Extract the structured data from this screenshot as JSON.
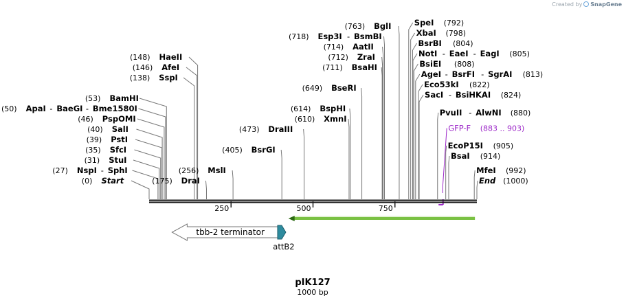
{
  "credit": {
    "prefix": "Created by",
    "brand": "SnapGene"
  },
  "plasmid": {
    "name": "pIK127",
    "length_label": "1000 bp",
    "length": 1000
  },
  "ruler": {
    "ticks": [
      250,
      500,
      750
    ]
  },
  "sites": [
    {
      "pos": "(0)",
      "name": "Start",
      "style": "italic",
      "at": 0,
      "row": 0
    },
    {
      "pos": "(27)",
      "name": "NspI",
      "extra": [
        "SphI"
      ],
      "at": 27,
      "row": 1
    },
    {
      "pos": "(31)",
      "name": "StuI",
      "at": 31,
      "row": 2
    },
    {
      "pos": "(35)",
      "name": "SfcI",
      "at": 35,
      "row": 3
    },
    {
      "pos": "(39)",
      "name": "PstI",
      "at": 39,
      "row": 4
    },
    {
      "pos": "(40)",
      "name": "SalI",
      "at": 40,
      "row": 5
    },
    {
      "pos": "(46)",
      "name": "PspOMI",
      "at": 46,
      "row": 6
    },
    {
      "pos": "(50)",
      "name": "ApaI",
      "extra": [
        "BaeGI",
        "Bme1580I"
      ],
      "at": 50,
      "row": 7
    },
    {
      "pos": "(53)",
      "name": "BamHI",
      "at": 53,
      "row": 8
    },
    {
      "pos": "(138)",
      "name": "SspI",
      "at": 138,
      "row": 10
    },
    {
      "pos": "(146)",
      "name": "AfeI",
      "at": 146,
      "row": 11
    },
    {
      "pos": "(148)",
      "name": "HaeII",
      "at": 148,
      "row": 12
    },
    {
      "pos": "(175)",
      "name": "DraI",
      "at": 175,
      "row": 0
    },
    {
      "pos": "(256)",
      "name": "MslI",
      "at": 256,
      "row": 1
    },
    {
      "pos": "(405)",
      "name": "BsrGI",
      "at": 405,
      "row": 3
    },
    {
      "pos": "(473)",
      "name": "DraIII",
      "at": 473,
      "row": 5
    },
    {
      "pos": "(610)",
      "name": "XmnI",
      "at": 610,
      "row": 6
    },
    {
      "pos": "(614)",
      "name": "BspHI",
      "at": 614,
      "row": 7
    },
    {
      "pos": "(649)",
      "name": "BseRI",
      "at": 649,
      "row": 9
    },
    {
      "pos": "(711)",
      "name": "BsaHI",
      "at": 711,
      "row": 11
    },
    {
      "pos": "(712)",
      "name": "ZraI",
      "at": 712,
      "row": 12
    },
    {
      "pos": "(714)",
      "name": "AatII",
      "at": 714,
      "row": 13
    },
    {
      "pos": "(718)",
      "name": "Esp3I",
      "extra": [
        "BsmBI"
      ],
      "at": 718,
      "row": 14
    },
    {
      "pos": "(763)",
      "name": "BglI",
      "at": 763,
      "row": 15
    },
    {
      "name": "SpeI",
      "pos": "(792)",
      "side": "right",
      "at": 792,
      "row": 15.33
    },
    {
      "name": "XbaI",
      "pos": "(798)",
      "side": "right",
      "at": 798,
      "row": 14.33
    },
    {
      "name": "BsrBI",
      "pos": "(804)",
      "side": "right",
      "at": 804,
      "row": 13.33
    },
    {
      "name": "NotI",
      "extra": [
        "EaeI",
        "EagI"
      ],
      "pos": "(805)",
      "side": "right",
      "at": 805,
      "row": 12.33
    },
    {
      "name": "BsiEI",
      "pos": "(808)",
      "side": "right",
      "at": 808,
      "row": 11.33
    },
    {
      "name": "AgeI",
      "extra": [
        "BsrFI",
        "SgrAI"
      ],
      "pos": "(813)",
      "side": "right",
      "at": 813,
      "row": 10.33
    },
    {
      "name": "Eco53kI",
      "pos": "(822)",
      "side": "right",
      "at": 822,
      "row": 9.33
    },
    {
      "name": "SacI",
      "extra": [
        "BsiHKAI"
      ],
      "pos": "(824)",
      "side": "right",
      "at": 824,
      "row": 8.33
    },
    {
      "name": "PvuII",
      "extra": [
        "AlwNI"
      ],
      "pos": "(880)",
      "side": "right",
      "at": 880,
      "row": 6.6
    },
    {
      "name": "EcoP15I",
      "pos": "(905)",
      "side": "right",
      "at": 905,
      "row": 3.4
    },
    {
      "name": "BsaI",
      "pos": "(914)",
      "side": "right",
      "at": 914,
      "row": 2.4
    },
    {
      "name": "MfeI",
      "pos": "(992)",
      "side": "right",
      "at": 992,
      "row": 1
    },
    {
      "name": "End",
      "pos": "(1000)",
      "side": "right",
      "style": "italic",
      "at": 1000,
      "row": 0
    }
  ],
  "primer": {
    "name": "GFP-F",
    "range": "(883 .. 903)",
    "start": 883,
    "end": 903,
    "color": "#9c27c8"
  },
  "features": [
    {
      "label": "tbb-2 terminator",
      "start": 70,
      "end": 392,
      "direction": "left",
      "fill": "#ffffff",
      "stroke": "#777777"
    },
    {
      "label": "attB2",
      "start": 392,
      "end": 417,
      "direction": "right",
      "fill": "#2e8b9e",
      "stroke": "#1d5f6d",
      "label_below": true
    },
    {
      "label": "",
      "start": 425,
      "end": 994,
      "direction": "left",
      "fill": "#7ac143",
      "stroke": "#4d8a1e",
      "thin": true
    }
  ],
  "colors": {
    "backbone": "#1a1a1a",
    "leader": "#777777",
    "text": "#000000",
    "pos_text": "#000000"
  }
}
